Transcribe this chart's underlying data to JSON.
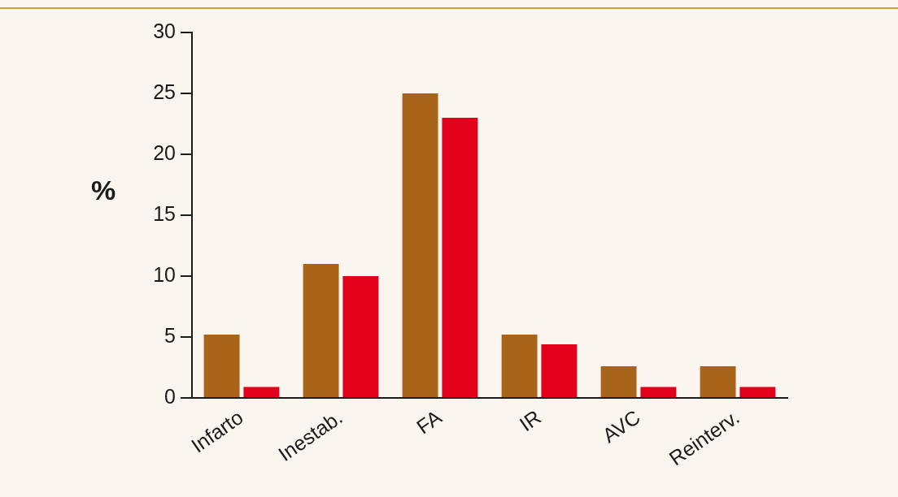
{
  "chart_data": {
    "type": "bar",
    "ylabel": "%",
    "categories": [
      "Infarto",
      "Inestab.",
      "FA",
      "IR",
      "AVC",
      "Reinterv."
    ],
    "series": [
      {
        "color": "#a8651a",
        "values": [
          5.2,
          11,
          25,
          5.2,
          2.6,
          2.6
        ]
      },
      {
        "color": "#e2001a",
        "values": [
          0.9,
          10,
          23,
          4.4,
          0.9,
          0.9
        ]
      }
    ],
    "ylim": [
      0,
      30
    ],
    "yticks": [
      0,
      5,
      10,
      15,
      20,
      25,
      30
    ],
    "grid": false,
    "legend": false
  }
}
